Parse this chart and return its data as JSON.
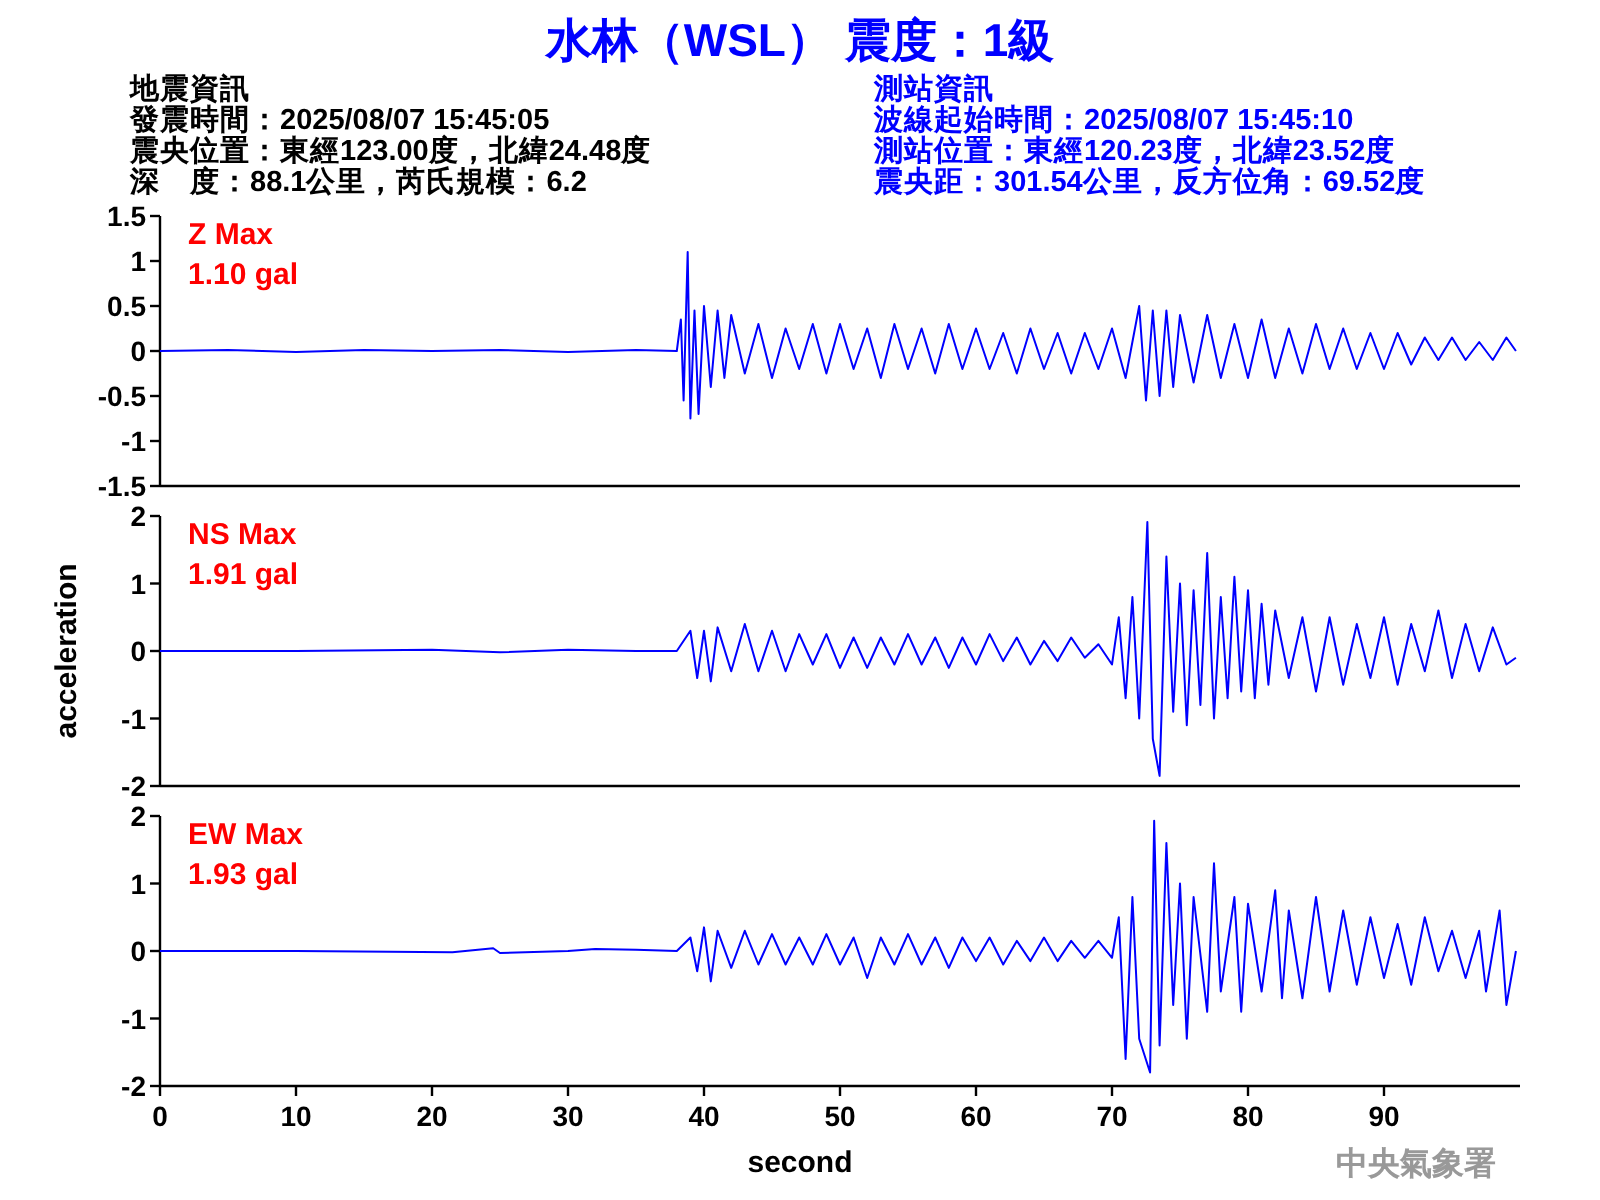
{
  "chart_data": [
    {
      "type": "other",
      "title": "水林（WSL） 震度：1級",
      "annotations": [
        "地震資訊",
        "發震時間：2025/08/07 15:45:05",
        "震央位置：東經123.00度，北緯24.48度",
        "深　度：88.1公里，芮氏規模：6.2",
        "測站資訊",
        "波線起始時間：2025/08/07 15:45:10",
        "測站位置：東經120.23度，北緯23.52度",
        "震央距：301.54公里，反方位角：69.52度"
      ]
    },
    {
      "type": "line",
      "xlim": [
        0,
        100
      ],
      "ylim": [
        -1.5,
        1.5
      ],
      "yticks": [
        -1.5,
        -1,
        -0.5,
        0,
        0.5,
        1,
        1.5
      ],
      "tick_labels": "y",
      "annotations": [
        "Z Max",
        "1.10 gal"
      ],
      "x": [
        0,
        5,
        10,
        15,
        20,
        25,
        30,
        35,
        38,
        38.3,
        38.5,
        38.8,
        39,
        39.3,
        39.6,
        40,
        40.5,
        41,
        41.5,
        42,
        43,
        44,
        45,
        46,
        47,
        48,
        49,
        50,
        51,
        52,
        53,
        54,
        55,
        56,
        57,
        58,
        59,
        60,
        61,
        62,
        63,
        64,
        65,
        66,
        67,
        68,
        69,
        70,
        71,
        72,
        72.5,
        73,
        73.5,
        74,
        74.5,
        75,
        76,
        77,
        78,
        79,
        80,
        81,
        82,
        83,
        84,
        85,
        86,
        87,
        88,
        89,
        90,
        91,
        92,
        93,
        94,
        95,
        96,
        97,
        98,
        99,
        99.7
      ],
      "series": [
        {
          "color": "#0000ff",
          "values": [
            0,
            0.01,
            -0.01,
            0.01,
            0,
            0.01,
            -0.01,
            0.01,
            0,
            0.35,
            -0.55,
            1.1,
            -0.75,
            0.45,
            -0.7,
            0.5,
            -0.4,
            0.45,
            -0.3,
            0.4,
            -0.25,
            0.3,
            -0.3,
            0.25,
            -0.2,
            0.3,
            -0.25,
            0.3,
            -0.2,
            0.25,
            -0.3,
            0.3,
            -0.2,
            0.25,
            -0.25,
            0.3,
            -0.2,
            0.25,
            -0.2,
            0.2,
            -0.25,
            0.25,
            -0.2,
            0.2,
            -0.25,
            0.2,
            -0.2,
            0.25,
            -0.3,
            0.5,
            -0.55,
            0.45,
            -0.5,
            0.45,
            -0.4,
            0.4,
            -0.35,
            0.4,
            -0.3,
            0.3,
            -0.3,
            0.35,
            -0.3,
            0.25,
            -0.25,
            0.3,
            -0.2,
            0.25,
            -0.2,
            0.2,
            -0.2,
            0.2,
            -0.15,
            0.15,
            -0.1,
            0.15,
            -0.1,
            0.1,
            -0.1,
            0.15,
            0
          ]
        }
      ]
    },
    {
      "type": "line",
      "xlim": [
        0,
        100
      ],
      "ylim": [
        -2,
        2
      ],
      "yticks": [
        -2,
        -1,
        0,
        1,
        2
      ],
      "tick_labels": "y",
      "ylabel": "acceleration",
      "annotations": [
        "NS Max",
        "1.91 gal"
      ],
      "x": [
        0,
        10,
        20,
        25,
        30,
        35,
        38,
        39,
        39.5,
        40,
        40.5,
        41,
        42,
        43,
        44,
        45,
        46,
        47,
        48,
        49,
        50,
        51,
        52,
        53,
        54,
        55,
        56,
        57,
        58,
        59,
        60,
        61,
        62,
        63,
        64,
        65,
        66,
        67,
        68,
        69,
        70,
        70.5,
        71,
        71.5,
        72,
        72.6,
        73,
        73.5,
        74,
        74.5,
        75,
        75.5,
        76,
        76.5,
        77,
        77.5,
        78,
        78.5,
        79,
        79.5,
        80,
        80.5,
        81,
        81.5,
        82,
        83,
        84,
        85,
        86,
        87,
        88,
        89,
        90,
        91,
        92,
        93,
        94,
        95,
        96,
        97,
        98,
        99,
        99.7
      ],
      "series": [
        {
          "color": "#0000ff",
          "values": [
            0,
            0,
            0.02,
            -0.02,
            0.02,
            0,
            0,
            0.3,
            -0.4,
            0.3,
            -0.45,
            0.35,
            -0.3,
            0.4,
            -0.3,
            0.3,
            -0.3,
            0.25,
            -0.2,
            0.25,
            -0.25,
            0.2,
            -0.25,
            0.2,
            -0.2,
            0.25,
            -0.2,
            0.2,
            -0.25,
            0.2,
            -0.2,
            0.25,
            -0.15,
            0.2,
            -0.2,
            0.15,
            -0.15,
            0.2,
            -0.1,
            0.1,
            -0.2,
            0.5,
            -0.7,
            0.8,
            -1.0,
            1.91,
            -1.3,
            -1.85,
            1.4,
            -0.9,
            1.0,
            -1.1,
            0.9,
            -0.8,
            1.45,
            -1.0,
            0.8,
            -0.7,
            1.1,
            -0.6,
            0.9,
            -0.7,
            0.7,
            -0.5,
            0.6,
            -0.4,
            0.5,
            -0.6,
            0.5,
            -0.5,
            0.4,
            -0.4,
            0.5,
            -0.5,
            0.4,
            -0.3,
            0.6,
            -0.4,
            0.4,
            -0.3,
            0.35,
            -0.2,
            -0.1
          ]
        }
      ]
    },
    {
      "type": "line",
      "xlim": [
        0,
        100
      ],
      "ylim": [
        -2,
        2
      ],
      "yticks": [
        -2,
        -1,
        0,
        1,
        2
      ],
      "xticks": [
        0,
        10,
        20,
        30,
        40,
        50,
        60,
        70,
        80,
        90
      ],
      "xlabel": "second",
      "annotations": [
        "EW Max",
        "1.93 gal",
        "中央氣象署"
      ],
      "x": [
        0,
        10,
        21.5,
        24.5,
        25,
        30,
        32,
        35,
        38,
        39,
        39.5,
        40,
        40.5,
        41,
        42,
        43,
        44,
        45,
        46,
        47,
        48,
        49,
        50,
        51,
        52,
        53,
        54,
        55,
        56,
        57,
        58,
        59,
        60,
        61,
        62,
        63,
        64,
        65,
        66,
        67,
        68,
        69,
        70,
        70.5,
        71,
        71.5,
        72,
        72.8,
        73.1,
        73.5,
        74,
        74.5,
        75,
        75.5,
        76,
        77,
        77.5,
        78,
        79,
        79.5,
        80,
        81,
        82,
        82.5,
        83,
        84,
        85,
        86,
        87,
        88,
        89,
        90,
        91,
        92,
        93,
        94,
        95,
        96,
        97,
        97.5,
        98.5,
        99,
        99.7
      ],
      "series": [
        {
          "color": "#0000ff",
          "values": [
            0,
            0,
            -0.02,
            0.04,
            -0.03,
            0,
            0.03,
            0.02,
            0,
            0.2,
            -0.3,
            0.35,
            -0.45,
            0.3,
            -0.25,
            0.3,
            -0.2,
            0.25,
            -0.2,
            0.2,
            -0.2,
            0.25,
            -0.2,
            0.2,
            -0.4,
            0.2,
            -0.2,
            0.25,
            -0.2,
            0.2,
            -0.25,
            0.2,
            -0.15,
            0.2,
            -0.2,
            0.15,
            -0.15,
            0.2,
            -0.15,
            0.15,
            -0.1,
            0.15,
            -0.1,
            0.5,
            -1.6,
            0.8,
            -1.3,
            -1.8,
            1.93,
            -1.4,
            1.6,
            -0.8,
            1.0,
            -1.3,
            0.8,
            -0.9,
            1.3,
            -0.6,
            0.8,
            -0.9,
            0.7,
            -0.6,
            0.9,
            -0.7,
            0.6,
            -0.7,
            0.8,
            -0.6,
            0.6,
            -0.5,
            0.5,
            -0.4,
            0.4,
            -0.5,
            0.5,
            -0.3,
            0.3,
            -0.4,
            0.3,
            -0.6,
            0.6,
            -0.8,
            0
          ]
        }
      ]
    }
  ]
}
